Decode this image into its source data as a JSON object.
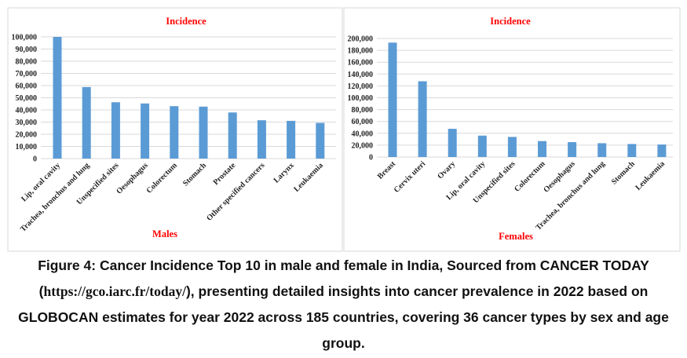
{
  "chart_data": [
    {
      "type": "bar",
      "title": "Incidence",
      "xlabel": "Males",
      "ylabel": "",
      "ylim": [
        0,
        100000
      ],
      "yticks": [
        0,
        10000,
        20000,
        30000,
        40000,
        50000,
        60000,
        70000,
        80000,
        90000,
        100000
      ],
      "ytick_labels": [
        "0",
        "10,000",
        "20,000",
        "30,000",
        "40,000",
        "50,000",
        "60,000",
        "70,000",
        "80,000",
        "90,000",
        "100,000"
      ],
      "grid": true,
      "color": "#5b9bd5",
      "categories": [
        "Lip, oral cavity",
        "Trachea, bronchus and lung",
        "Unspecified sites",
        "Oesophagus",
        "Colorectum",
        "Stomach",
        "Prostate",
        "Other specified cancers",
        "Larynx",
        "Leukaemia"
      ],
      "values": [
        100000,
        58800,
        46300,
        45300,
        43100,
        42700,
        37900,
        31500,
        31000,
        29300
      ]
    },
    {
      "type": "bar",
      "title": "Incidence",
      "xlabel": "Females",
      "ylabel": "",
      "ylim": [
        0,
        200000
      ],
      "yticks": [
        0,
        20000,
        40000,
        60000,
        80000,
        100000,
        120000,
        140000,
        160000,
        180000,
        200000
      ],
      "ytick_labels": [
        "0",
        "20,000",
        "40,000",
        "60,000",
        "80,000",
        "100,000",
        "120,000",
        "140,000",
        "160,000",
        "180,000",
        "200,000"
      ],
      "grid": true,
      "color": "#5b9bd5",
      "categories": [
        "Breast",
        "Cervix uteri",
        "Ovary",
        "Lip, oral cavity",
        "Unspecified sites",
        "Colorectum",
        "Oesophagus",
        "Trachea, bronchus and lung",
        "Stomach",
        "Leukaemia"
      ],
      "values": [
        193000,
        127800,
        47600,
        36100,
        33900,
        26900,
        25100,
        23300,
        22000,
        21100
      ]
    }
  ],
  "caption": {
    "part1": "Figure 4: Cancer Incidence Top 10 in male and female in India, Sourced from CANCER TODAY (",
    "url": "https://gco.iarc.fr/today/",
    "part2": "), presenting detailed insights into cancer prevalence in 2022 based on GLOBOCAN estimates for year 2022 across 185 countries, covering 36 cancer types by sex and age group."
  },
  "colors": {
    "title": "#ff0000",
    "bar": "#5b9bd5"
  }
}
